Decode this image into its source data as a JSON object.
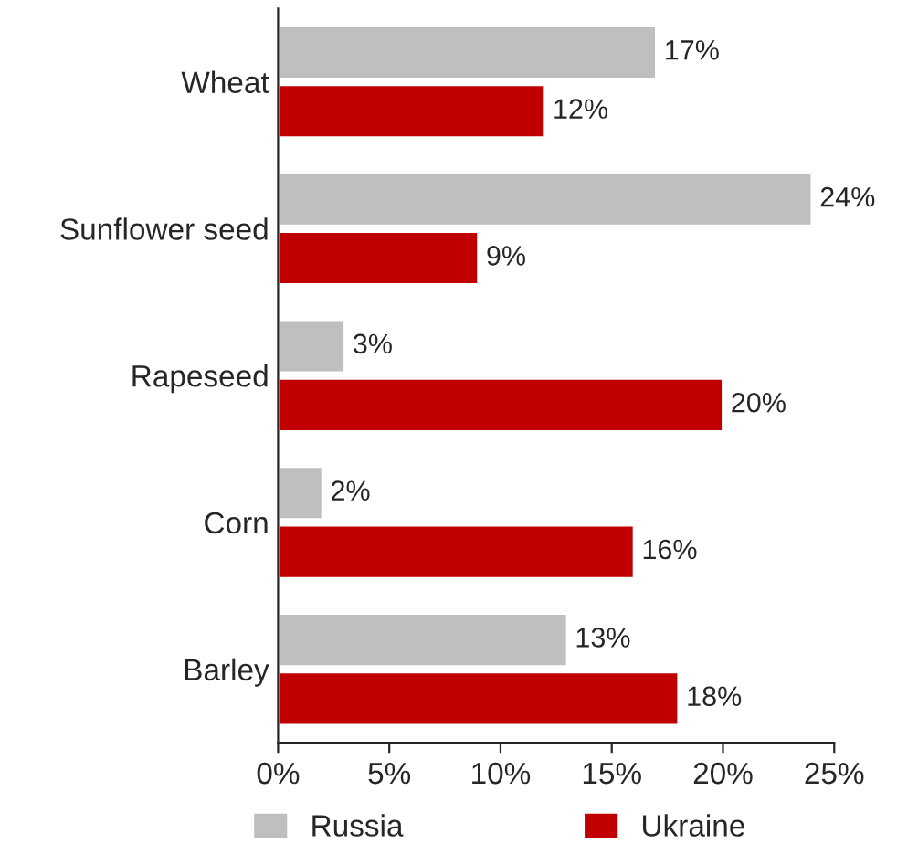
{
  "chart_data": {
    "type": "bar",
    "orientation": "horizontal",
    "categories": [
      "Wheat",
      "Sunflower seed",
      "Rapeseed",
      "Corn",
      "Barley"
    ],
    "series": [
      {
        "name": "Russia",
        "color": "#bfbfbf",
        "values": [
          17,
          24,
          3,
          2,
          13
        ],
        "value_labels": [
          "17%",
          "24%",
          "3%",
          "2%",
          "13%"
        ]
      },
      {
        "name": "Ukraine",
        "color": "#c00000",
        "values": [
          12,
          9,
          20,
          16,
          18
        ],
        "value_labels": [
          "12%",
          "9%",
          "20%",
          "16%",
          "18%"
        ]
      }
    ],
    "xlim": [
      0,
      25
    ],
    "xticks": [
      {
        "value": 0,
        "label": "0%"
      },
      {
        "value": 5,
        "label": "5%"
      },
      {
        "value": 10,
        "label": "10%"
      },
      {
        "value": 15,
        "label": "15%"
      },
      {
        "value": 20,
        "label": "20%"
      },
      {
        "value": 25,
        "label": "25%"
      }
    ],
    "legend": "bottom",
    "grid": false
  }
}
